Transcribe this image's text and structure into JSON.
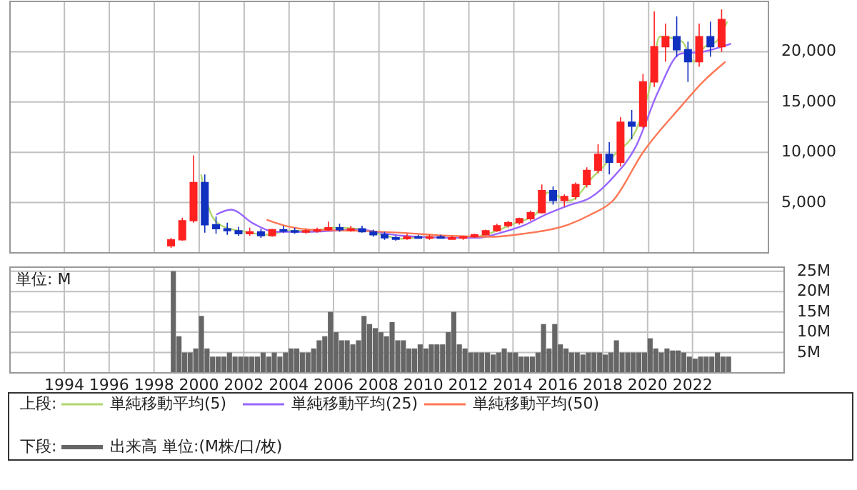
{
  "chart_data": [
    {
      "type": "candlestick",
      "xlim": [
        "1991-08",
        "2025-05"
      ],
      "xticks": [
        "1994",
        "1996",
        "1998",
        "2000",
        "2002",
        "2004",
        "2006",
        "2008",
        "2010",
        "2012",
        "2014",
        "2016",
        "2018",
        "2020",
        "2022"
      ],
      "ylim": [
        0,
        25000
      ],
      "yticks": [
        {
          "value": 5000,
          "label": "5,000"
        },
        {
          "value": 10000,
          "label": "10,000"
        },
        {
          "value": 15000,
          "label": "15,000"
        },
        {
          "value": 20000,
          "label": "20,000"
        }
      ],
      "tick_labels": "y",
      "grid": true,
      "legend": "bottom",
      "legend_title": "上段:",
      "x": [
        "1998-10",
        "1999-04",
        "1999-10",
        "2000-04",
        "2000-10",
        "2001-04",
        "2001-10",
        "2002-04",
        "2002-10",
        "2003-04",
        "2003-10",
        "2004-04",
        "2004-10",
        "2005-04",
        "2005-10",
        "2006-04",
        "2006-10",
        "2007-04",
        "2007-10",
        "2008-04",
        "2008-10",
        "2009-04",
        "2009-10",
        "2010-04",
        "2010-10",
        "2011-04",
        "2011-10",
        "2012-04",
        "2012-10",
        "2013-04",
        "2013-10",
        "2014-04",
        "2014-10",
        "2015-04",
        "2015-10",
        "2016-04",
        "2016-10",
        "2017-04",
        "2017-10",
        "2018-04",
        "2018-10",
        "2019-04",
        "2019-10",
        "2020-04",
        "2020-10",
        "2021-04",
        "2021-10",
        "2022-04",
        "2022-10",
        "2023-04"
      ],
      "ohlc": [
        [
          700,
          1500,
          500,
          1300
        ],
        [
          1300,
          3500,
          1200,
          3200
        ],
        [
          3200,
          9700,
          3000,
          7000
        ],
        [
          7000,
          7800,
          2000,
          2800
        ],
        [
          2800,
          3600,
          1900,
          2400
        ],
        [
          2400,
          3000,
          1800,
          2200
        ],
        [
          2200,
          2600,
          1700,
          1900
        ],
        [
          1900,
          2500,
          1700,
          2100
        ],
        [
          2100,
          2400,
          1500,
          1700
        ],
        [
          1700,
          2400,
          1600,
          2300
        ],
        [
          2300,
          2700,
          2000,
          2200
        ],
        [
          2200,
          2500,
          1900,
          2100
        ],
        [
          2100,
          2400,
          1900,
          2200
        ],
        [
          2200,
          2500,
          2000,
          2300
        ],
        [
          2300,
          3100,
          2200,
          2500
        ],
        [
          2500,
          2900,
          2100,
          2300
        ],
        [
          2300,
          2700,
          2100,
          2400
        ],
        [
          2400,
          2700,
          2000,
          2100
        ],
        [
          2100,
          2300,
          1600,
          1800
        ],
        [
          1800,
          2100,
          1300,
          1500
        ],
        [
          1500,
          1700,
          1200,
          1400
        ],
        [
          1400,
          1900,
          1300,
          1600
        ],
        [
          1600,
          1800,
          1400,
          1500
        ],
        [
          1500,
          1800,
          1300,
          1600
        ],
        [
          1600,
          1800,
          1400,
          1500
        ],
        [
          1500,
          1700,
          1300,
          1500
        ],
        [
          1500,
          1700,
          1300,
          1600
        ],
        [
          1600,
          1900,
          1500,
          1800
        ],
        [
          1800,
          2300,
          1700,
          2200
        ],
        [
          2200,
          2900,
          2100,
          2700
        ],
        [
          2700,
          3200,
          2500,
          3000
        ],
        [
          3000,
          3500,
          2800,
          3400
        ],
        [
          3400,
          4200,
          3200,
          4000
        ],
        [
          4000,
          6800,
          3900,
          6200
        ],
        [
          6200,
          6600,
          4800,
          5200
        ],
        [
          5200,
          5800,
          4600,
          5600
        ],
        [
          5600,
          7000,
          5300,
          6800
        ],
        [
          6800,
          8500,
          6500,
          8200
        ],
        [
          8200,
          10800,
          7900,
          9800
        ],
        [
          9800,
          11000,
          7800,
          9000
        ],
        [
          9000,
          13500,
          8600,
          13000
        ],
        [
          13000,
          14200,
          11300,
          12600
        ],
        [
          12600,
          17800,
          12400,
          17000
        ],
        [
          17000,
          24000,
          16500,
          20500
        ],
        [
          20500,
          22800,
          19000,
          21500
        ],
        [
          21500,
          23500,
          19500,
          20200
        ],
        [
          20200,
          21000,
          17000,
          19000
        ],
        [
          19000,
          22800,
          18500,
          21500
        ],
        [
          21500,
          23000,
          19500,
          20500
        ],
        [
          20500,
          24200,
          20000,
          23200
        ]
      ],
      "series": [
        {
          "name": "単純移動平均(5)",
          "type": "line",
          "color": "#b0d870",
          "x": [
            "2000-02",
            "2000-07",
            "2001-01",
            "2002-01",
            "2003-01",
            "2004-01",
            "2005-01",
            "2006-01",
            "2007-01",
            "2008-01",
            "2009-01",
            "2010-01",
            "2011-01",
            "2012-01",
            "2013-01",
            "2014-01",
            "2015-01",
            "2015-07",
            "2016-07",
            "2017-07",
            "2018-07",
            "2019-07",
            "2020-01",
            "2020-07",
            "2021-07",
            "2022-01",
            "2022-07",
            "2023-01",
            "2023-07"
          ],
          "values": [
            7800,
            4000,
            2700,
            2100,
            1800,
            2200,
            2200,
            2500,
            2400,
            1900,
            1400,
            1600,
            1500,
            1500,
            2000,
            2900,
            3900,
            6000,
            5200,
            7500,
            9800,
            12500,
            16000,
            21500,
            21000,
            19000,
            20500,
            21000,
            23000
          ]
        },
        {
          "name": "単純移動平均(25)",
          "type": "line",
          "color": "#9966ff",
          "x": [
            "2000-10",
            "2001-06",
            "2002-06",
            "2003-06",
            "2005-01",
            "2007-01",
            "2009-01",
            "2011-01",
            "2012-06",
            "2013-06",
            "2014-06",
            "2015-06",
            "2016-06",
            "2017-06",
            "2018-06",
            "2019-06",
            "2020-06",
            "2021-06",
            "2022-06",
            "2023-09"
          ],
          "values": [
            3800,
            4300,
            2900,
            2100,
            2100,
            2300,
            1700,
            1500,
            1500,
            2000,
            2700,
            3800,
            4700,
            5500,
            7500,
            10500,
            16000,
            19800,
            20000,
            20800
          ]
        },
        {
          "name": "単純移動平均(50)",
          "type": "line",
          "color": "#ff7755",
          "x": [
            "2003-01",
            "2004-01",
            "2005-01",
            "2007-01",
            "2009-01",
            "2011-01",
            "2013-01",
            "2014-06",
            "2016-06",
            "2017-06",
            "2018-06",
            "2019-10",
            "2021-06",
            "2022-06",
            "2023-06"
          ],
          "values": [
            3300,
            2600,
            2300,
            2200,
            2000,
            1700,
            1600,
            1900,
            2800,
            3800,
            5200,
            10000,
            14500,
            17000,
            19000
          ]
        }
      ]
    },
    {
      "type": "bar",
      "xlim": [
        "1991-08",
        "2026-02"
      ],
      "xticks": [
        "1994",
        "1996",
        "1998",
        "2000",
        "2002",
        "2004",
        "2006",
        "2008",
        "2010",
        "2012",
        "2014",
        "2016",
        "2018",
        "2020",
        "2022"
      ],
      "ylim": [
        0,
        26
      ],
      "yticks": [
        {
          "value": 5,
          "label": "5M"
        },
        {
          "value": 10,
          "label": "10M"
        },
        {
          "value": 15,
          "label": "15M"
        },
        {
          "value": 20,
          "label": "20M"
        },
        {
          "value": 25,
          "label": "25M"
        }
      ],
      "grid": true,
      "legend": "bottom",
      "legend_title": "下段:",
      "annotations": [
        "単位: M"
      ],
      "series": [
        {
          "name": "出来高 単位:(M株/口/枚)",
          "color": "#666666",
          "x": [
            "1998-10",
            "1999-01",
            "1999-04",
            "1999-07",
            "1999-10",
            "2000-01",
            "2000-04",
            "2000-07",
            "2000-10",
            "2001-01",
            "2001-04",
            "2001-07",
            "2001-10",
            "2002-01",
            "2002-04",
            "2002-07",
            "2002-10",
            "2003-01",
            "2003-04",
            "2003-07",
            "2003-10",
            "2004-01",
            "2004-04",
            "2004-07",
            "2004-10",
            "2005-01",
            "2005-04",
            "2005-07",
            "2005-10",
            "2006-01",
            "2006-04",
            "2006-07",
            "2006-10",
            "2007-01",
            "2007-04",
            "2007-07",
            "2007-10",
            "2008-01",
            "2008-04",
            "2008-07",
            "2008-10",
            "2009-01",
            "2009-04",
            "2009-07",
            "2009-10",
            "2010-01",
            "2010-04",
            "2010-07",
            "2010-10",
            "2011-01",
            "2011-04",
            "2011-07",
            "2011-10",
            "2012-01",
            "2012-04",
            "2012-07",
            "2012-10",
            "2013-01",
            "2013-04",
            "2013-07",
            "2013-10",
            "2014-01",
            "2014-04",
            "2014-07",
            "2014-10",
            "2015-01",
            "2015-04",
            "2015-07",
            "2015-10",
            "2016-01",
            "2016-04",
            "2016-07",
            "2016-10",
            "2017-01",
            "2017-04",
            "2017-07",
            "2017-10",
            "2018-01",
            "2018-04",
            "2018-07",
            "2018-10",
            "2019-01",
            "2019-04",
            "2019-07",
            "2019-10",
            "2020-01",
            "2020-04",
            "2020-07",
            "2020-10",
            "2021-01",
            "2021-04",
            "2021-07",
            "2021-10",
            "2022-01",
            "2022-04",
            "2022-07",
            "2022-10",
            "2023-01",
            "2023-04",
            "2023-07"
          ],
          "values": [
            25,
            9,
            5,
            5,
            6,
            14,
            6,
            4,
            4,
            4,
            5,
            4,
            4,
            4,
            4,
            4,
            5,
            4,
            5,
            4,
            5,
            6,
            6,
            5,
            5,
            6,
            8,
            9,
            15,
            10,
            8,
            8,
            7,
            8,
            14,
            12,
            11,
            10,
            9,
            12.5,
            8,
            8,
            6,
            6,
            7,
            6,
            7,
            7,
            7,
            10,
            15,
            7,
            6,
            5,
            5,
            5,
            5,
            4.5,
            5,
            6,
            5,
            5,
            4,
            4,
            4,
            5,
            12,
            6,
            12,
            7,
            6,
            5,
            5,
            4.5,
            5,
            5,
            5,
            4.5,
            5,
            8,
            5,
            5,
            5,
            5,
            5,
            8.5,
            6,
            5,
            6,
            5.5,
            5.5,
            5,
            4,
            3.5,
            4,
            4,
            4,
            5,
            4,
            4
          ]
        }
      ]
    }
  ]
}
